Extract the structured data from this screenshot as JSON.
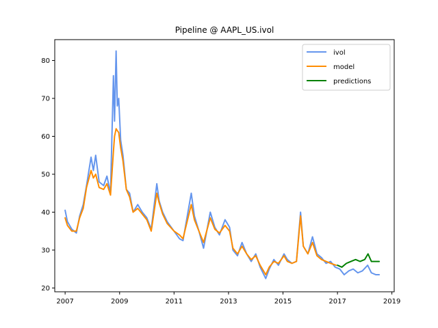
{
  "chart_data": {
    "type": "line",
    "title": "Pipeline @ AAPL_US.ivol",
    "xlabel": "",
    "ylabel": "",
    "xlim": [
      "2006-08-15",
      "2019-02-01"
    ],
    "ylim": [
      19,
      85.5
    ],
    "x_ticks": [
      {
        "value": "2007-01-01",
        "label": "2007"
      },
      {
        "value": "2009-01-01",
        "label": "2009"
      },
      {
        "value": "2011-01-01",
        "label": "2011"
      },
      {
        "value": "2013-01-01",
        "label": "2013"
      },
      {
        "value": "2015-01-01",
        "label": "2015"
      },
      {
        "value": "2017-01-01",
        "label": "2017"
      },
      {
        "value": "2019-01-01",
        "label": "2019"
      }
    ],
    "y_ticks": [
      20,
      30,
      40,
      50,
      60,
      70,
      80
    ],
    "grid": false,
    "legend_position": "top-right",
    "series": [
      {
        "name": "ivol",
        "color": "#6495ED",
        "points": [
          [
            "2007-01-01",
            40.5
          ],
          [
            "2007-02-01",
            37.5
          ],
          [
            "2007-04-01",
            35.5
          ],
          [
            "2007-06-01",
            34.5
          ],
          [
            "2007-07-15",
            39.0
          ],
          [
            "2007-09-01",
            42.0
          ],
          [
            "2007-10-15",
            47.0
          ],
          [
            "2007-12-15",
            54.5
          ],
          [
            "2008-01-15",
            51.0
          ],
          [
            "2008-02-15",
            55.0
          ],
          [
            "2008-04-01",
            48.0
          ],
          [
            "2008-06-01",
            47.0
          ],
          [
            "2008-07-15",
            49.5
          ],
          [
            "2008-09-01",
            45.0
          ],
          [
            "2008-10-10",
            76.0
          ],
          [
            "2008-10-25",
            64.0
          ],
          [
            "2008-11-15",
            82.5
          ],
          [
            "2008-12-01",
            68.0
          ],
          [
            "2008-12-20",
            70.0
          ],
          [
            "2009-01-15",
            59.0
          ],
          [
            "2009-02-15",
            55.0
          ],
          [
            "2009-04-01",
            46.0
          ],
          [
            "2009-05-15",
            45.0
          ],
          [
            "2009-07-01",
            40.0
          ],
          [
            "2009-09-01",
            42.0
          ],
          [
            "2009-11-01",
            40.0
          ],
          [
            "2010-01-01",
            38.5
          ],
          [
            "2010-03-01",
            35.5
          ],
          [
            "2010-05-15",
            47.5
          ],
          [
            "2010-06-15",
            43.0
          ],
          [
            "2010-08-01",
            40.0
          ],
          [
            "2010-10-01",
            37.5
          ],
          [
            "2011-01-01",
            35.0
          ],
          [
            "2011-03-15",
            33.0
          ],
          [
            "2011-05-01",
            32.5
          ],
          [
            "2011-08-20",
            45.0
          ],
          [
            "2011-10-01",
            39.0
          ],
          [
            "2011-12-01",
            35.0
          ],
          [
            "2012-02-01",
            30.5
          ],
          [
            "2012-05-01",
            40.0
          ],
          [
            "2012-07-01",
            36.0
          ],
          [
            "2012-09-01",
            34.0
          ],
          [
            "2012-11-15",
            38.0
          ],
          [
            "2013-01-15",
            36.0
          ],
          [
            "2013-03-01",
            30.0
          ],
          [
            "2013-05-01",
            28.5
          ],
          [
            "2013-07-01",
            32.0
          ],
          [
            "2013-09-01",
            29.0
          ],
          [
            "2013-11-01",
            27.0
          ],
          [
            "2014-01-01",
            29.0
          ],
          [
            "2014-03-01",
            25.5
          ],
          [
            "2014-05-15",
            22.5
          ],
          [
            "2014-07-01",
            25.0
          ],
          [
            "2014-09-01",
            27.5
          ],
          [
            "2014-11-01",
            26.0
          ],
          [
            "2015-01-15",
            29.0
          ],
          [
            "2015-03-01",
            27.5
          ],
          [
            "2015-05-01",
            26.5
          ],
          [
            "2015-07-01",
            27.0
          ],
          [
            "2015-08-25",
            40.0
          ],
          [
            "2015-10-01",
            31.0
          ],
          [
            "2015-12-01",
            29.0
          ],
          [
            "2016-02-01",
            33.5
          ],
          [
            "2016-04-01",
            29.0
          ],
          [
            "2016-06-01",
            28.0
          ],
          [
            "2016-08-01",
            26.5
          ],
          [
            "2016-10-01",
            27.0
          ],
          [
            "2016-12-01",
            25.5
          ],
          [
            "2017-02-01",
            25.0
          ],
          [
            "2017-04-01",
            23.5
          ],
          [
            "2017-06-01",
            24.5
          ],
          [
            "2017-08-01",
            25.0
          ],
          [
            "2017-10-01",
            24.0
          ],
          [
            "2017-12-01",
            24.5
          ],
          [
            "2018-02-10",
            26.0
          ],
          [
            "2018-04-01",
            24.0
          ],
          [
            "2018-06-01",
            23.5
          ],
          [
            "2018-07-15",
            23.5
          ]
        ]
      },
      {
        "name": "model",
        "color": "#FF8C00",
        "points": [
          [
            "2007-01-01",
            38.5
          ],
          [
            "2007-02-01",
            36.5
          ],
          [
            "2007-04-01",
            35.0
          ],
          [
            "2007-06-01",
            35.0
          ],
          [
            "2007-07-15",
            38.5
          ],
          [
            "2007-09-01",
            41.0
          ],
          [
            "2007-10-15",
            46.5
          ],
          [
            "2007-12-15",
            51.0
          ],
          [
            "2008-01-15",
            49.0
          ],
          [
            "2008-02-15",
            50.0
          ],
          [
            "2008-04-01",
            46.5
          ],
          [
            "2008-06-01",
            46.0
          ],
          [
            "2008-07-15",
            47.5
          ],
          [
            "2008-09-01",
            44.5
          ],
          [
            "2008-10-10",
            56.0
          ],
          [
            "2008-10-25",
            60.0
          ],
          [
            "2008-11-15",
            62.0
          ],
          [
            "2008-12-01",
            61.5
          ],
          [
            "2008-12-20",
            61.0
          ],
          [
            "2009-01-15",
            57.0
          ],
          [
            "2009-02-15",
            53.5
          ],
          [
            "2009-04-01",
            46.0
          ],
          [
            "2009-05-15",
            44.0
          ],
          [
            "2009-07-01",
            40.0
          ],
          [
            "2009-09-01",
            41.0
          ],
          [
            "2009-11-01",
            39.5
          ],
          [
            "2010-01-01",
            38.0
          ],
          [
            "2010-03-01",
            35.0
          ],
          [
            "2010-05-15",
            45.0
          ],
          [
            "2010-06-15",
            42.5
          ],
          [
            "2010-08-01",
            39.5
          ],
          [
            "2010-10-01",
            37.0
          ],
          [
            "2011-01-01",
            35.0
          ],
          [
            "2011-03-15",
            34.0
          ],
          [
            "2011-05-01",
            33.0
          ],
          [
            "2011-08-20",
            42.0
          ],
          [
            "2011-10-01",
            38.0
          ],
          [
            "2011-12-01",
            35.0
          ],
          [
            "2012-02-01",
            32.0
          ],
          [
            "2012-05-01",
            38.5
          ],
          [
            "2012-07-01",
            35.5
          ],
          [
            "2012-09-01",
            34.5
          ],
          [
            "2012-11-15",
            36.5
          ],
          [
            "2013-01-15",
            35.0
          ],
          [
            "2013-03-01",
            30.5
          ],
          [
            "2013-05-01",
            29.0
          ],
          [
            "2013-07-01",
            31.0
          ],
          [
            "2013-09-01",
            29.0
          ],
          [
            "2013-11-01",
            27.5
          ],
          [
            "2014-01-01",
            28.5
          ],
          [
            "2014-03-01",
            26.0
          ],
          [
            "2014-05-15",
            23.5
          ],
          [
            "2014-07-01",
            25.5
          ],
          [
            "2014-09-01",
            27.0
          ],
          [
            "2014-11-01",
            26.5
          ],
          [
            "2015-01-15",
            28.5
          ],
          [
            "2015-03-01",
            27.0
          ],
          [
            "2015-05-01",
            26.5
          ],
          [
            "2015-07-01",
            27.0
          ],
          [
            "2015-08-25",
            39.0
          ],
          [
            "2015-10-01",
            31.0
          ],
          [
            "2015-12-01",
            29.0
          ],
          [
            "2016-02-01",
            32.0
          ],
          [
            "2016-04-01",
            28.5
          ],
          [
            "2016-06-01",
            27.5
          ],
          [
            "2016-08-01",
            27.0
          ],
          [
            "2016-10-01",
            26.5
          ],
          [
            "2016-12-15",
            26.0
          ]
        ]
      },
      {
        "name": "predictions",
        "color": "#008000",
        "points": [
          [
            "2017-01-01",
            26.0
          ],
          [
            "2017-03-01",
            25.5
          ],
          [
            "2017-05-01",
            26.5
          ],
          [
            "2017-07-01",
            27.0
          ],
          [
            "2017-09-01",
            27.5
          ],
          [
            "2017-11-01",
            27.0
          ],
          [
            "2018-01-01",
            27.5
          ],
          [
            "2018-02-15",
            29.0
          ],
          [
            "2018-04-01",
            27.0
          ],
          [
            "2018-06-01",
            27.0
          ],
          [
            "2018-07-15",
            27.0
          ]
        ]
      }
    ]
  }
}
